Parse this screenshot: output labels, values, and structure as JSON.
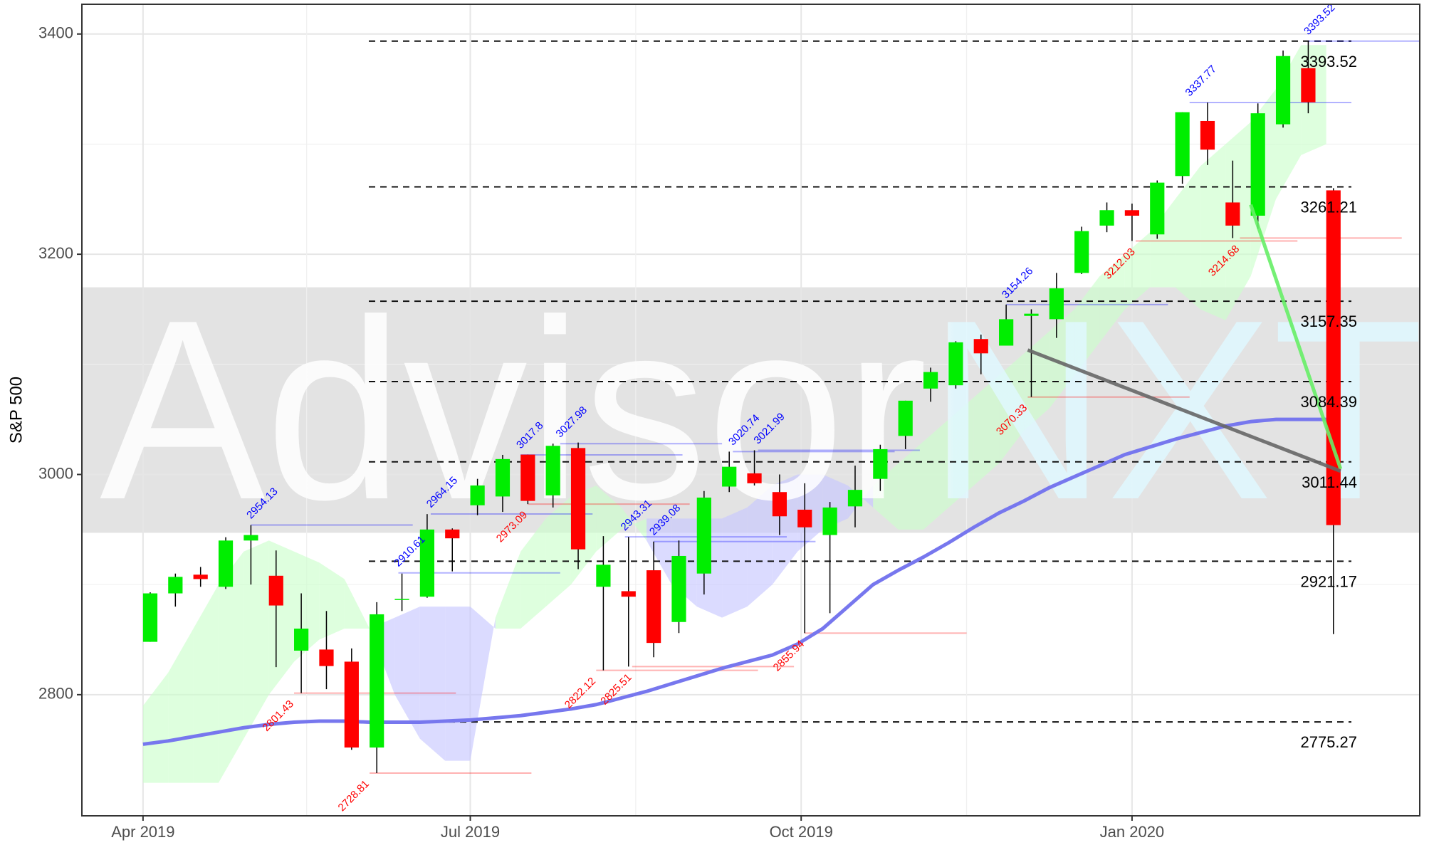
{
  "chart_data": {
    "type": "candlestick",
    "y_label": "S&P 500",
    "watermark": "AdvisorNXT",
    "x": [
      "2019-04-01",
      "2019-04-08",
      "2019-04-15",
      "2019-04-22",
      "2019-04-29",
      "2019-05-06",
      "2019-05-13",
      "2019-05-20",
      "2019-05-27",
      "2019-06-03",
      "2019-06-10",
      "2019-06-17",
      "2019-06-24",
      "2019-07-01",
      "2019-07-08",
      "2019-07-15",
      "2019-07-22",
      "2019-07-29",
      "2019-08-05",
      "2019-08-12",
      "2019-08-19",
      "2019-08-26",
      "2019-09-02",
      "2019-09-09",
      "2019-09-16",
      "2019-09-23",
      "2019-09-30",
      "2019-10-07",
      "2019-10-14",
      "2019-10-21",
      "2019-10-28",
      "2019-11-04",
      "2019-11-11",
      "2019-11-18",
      "2019-11-25",
      "2019-12-02",
      "2019-12-09",
      "2019-12-16",
      "2019-12-23",
      "2019-12-30",
      "2020-01-06",
      "2020-01-13",
      "2020-01-20",
      "2020-01-27",
      "2020-02-03",
      "2020-02-10",
      "2020-02-17",
      "2020-02-24"
    ],
    "open": [
      2848,
      2892,
      2909,
      2898,
      2940,
      2908,
      2840,
      2841,
      2830,
      2752,
      2886,
      2889,
      2950,
      2972,
      2980,
      3018,
      2981,
      3024,
      2898,
      2894,
      2913,
      2866,
      2910,
      2989,
      3001,
      2984,
      2968,
      2945,
      2971,
      2996,
      3035,
      3078,
      3081,
      3123,
      3117,
      3144,
      3141,
      3183,
      3226,
      3240,
      3218,
      3271,
      3321,
      3247,
      3235,
      3318,
      3369,
      3258
    ],
    "high": [
      2893,
      2910,
      2916,
      2943,
      2954,
      2931,
      2892,
      2876,
      2842,
      2884,
      2910,
      2964,
      2951,
      2996,
      3017.8,
      3018,
      3027.98,
      3029,
      2944,
      2943.31,
      2939.08,
      2940,
      2985,
      3020.74,
      3021.99,
      3000,
      2992,
      2975,
      3008,
      3027,
      3067,
      3097,
      3121,
      3127,
      3154.26,
      3150,
      3183,
      3225,
      3247,
      3246,
      3267,
      3329,
      3337.77,
      3285,
      3337,
      3385,
      3393.52,
      3260
    ],
    "low": [
      2848,
      2880,
      2898,
      2896,
      2900,
      2825,
      2801.43,
      2805,
      2750,
      2728.81,
      2876,
      2888,
      2912,
      2963,
      2966,
      2973.09,
      2970,
      2914,
      2822.12,
      2825.51,
      2834,
      2856,
      2891,
      2984,
      2990,
      2945,
      2855.94,
      2874,
      2952,
      2985,
      3023,
      3066,
      3078,
      3091,
      3117,
      3070.33,
      3124,
      3182,
      3220,
      3212.03,
      3214,
      3264,
      3281,
      3214.68,
      3223,
      3315,
      3328,
      2855
    ],
    "close": [
      2892,
      2907,
      2905,
      2940,
      2945,
      2881,
      2860,
      2826,
      2752,
      2873,
      2887,
      2950,
      2942,
      2990,
      3014,
      2976,
      3026,
      2932,
      2918,
      2889,
      2847,
      2926,
      2979,
      3007,
      2992,
      2962,
      2952,
      2970,
      2986,
      3023,
      3067,
      3093,
      3120,
      3110,
      3141,
      3146,
      3169,
      3221,
      3240,
      3235,
      3265,
      3329,
      3295,
      3226,
      3328,
      3380,
      3338,
      2954
    ],
    "up_color": "#00ee00",
    "down_color": "#ff0000",
    "moving_average": {
      "color": "#7777ee",
      "values": [
        2755,
        2758,
        2762,
        2766,
        2770,
        2773,
        2775,
        2776,
        2776,
        2775,
        2775,
        2775,
        2776,
        2777,
        2779,
        2781,
        2784,
        2787,
        2791,
        2797,
        2803,
        2810,
        2817,
        2824,
        2830,
        2836,
        2846,
        2860,
        2880,
        2900,
        2913,
        2925,
        2938,
        2952,
        2965,
        2976,
        2988,
        2998,
        3008,
        3018,
        3025,
        3032,
        3038,
        3044,
        3048,
        3050,
        3050,
        3050
      ]
    },
    "cloud": {
      "up_color": "#ccffcc",
      "down_color": "#c8c8ff",
      "span_a": [
        2790,
        2820,
        2860,
        2900,
        2930,
        2940,
        2930,
        2920,
        2905,
        2860,
        2800,
        2760,
        2740,
        2740,
        2870,
        2930,
        2960,
        2980,
        2990,
        2970,
        2940,
        2900,
        2880,
        2870,
        2880,
        2900,
        2930,
        2950,
        2960,
        2990,
        3010,
        3030,
        3050,
        3070,
        3090,
        3110,
        3130,
        3150,
        3180,
        3200,
        3220,
        3250,
        3280,
        3300,
        3320,
        3350,
        3390,
        3390
      ],
      "span_b": [
        2720,
        2720,
        2720,
        2720,
        2760,
        2800,
        2830,
        2850,
        2860,
        2860,
        2870,
        2880,
        2880,
        2880,
        2860,
        2860,
        2880,
        2900,
        2930,
        2950,
        2960,
        2960,
        2960,
        2960,
        2970,
        2990,
        3000,
        3000,
        2990,
        2970,
        2950,
        2950,
        2970,
        2990,
        3010,
        3040,
        3060,
        3090,
        3120,
        3150,
        3170,
        3170,
        3150,
        3140,
        3180,
        3250,
        3290,
        3300
      ]
    },
    "levels": [
      3393.52,
      3261.21,
      3157.35,
      3084.39,
      3011.44,
      2921.17,
      2775.27
    ],
    "band": [
      2947,
      3170
    ],
    "peaks": {
      "color": "#0000ff",
      "x": [
        "2019-05-01",
        "2019-06-11",
        "2019-06-20",
        "2019-07-15",
        "2019-07-26",
        "2019-08-13",
        "2019-08-21",
        "2019-09-12",
        "2019-09-19",
        "2019-11-27",
        "2020-01-17",
        "2020-02-19"
      ],
      "values": [
        2954.13,
        2910.61,
        2964.15,
        3017.8,
        3027.98,
        2943.31,
        2939.08,
        3020.74,
        3021.99,
        3154.26,
        3337.77,
        3393.52
      ]
    },
    "troughs": {
      "color": "#ff0000",
      "x": [
        "2019-05-13",
        "2019-06-03",
        "2019-07-17",
        "2019-08-05",
        "2019-08-15",
        "2019-10-02",
        "2019-12-03",
        "2020-01-02",
        "2020-01-31"
      ],
      "values": [
        2801.43,
        2728.81,
        2973.09,
        2822.12,
        2825.51,
        2855.94,
        3070.33,
        3212.03,
        3214.68
      ]
    },
    "trendlines": [
      {
        "color": "#66ee66",
        "x": [
          "2020-02-03",
          "2020-02-28"
        ],
        "values": [
          3245,
          3005
        ]
      },
      {
        "color": "#666666",
        "x": [
          "2019-12-03",
          "2020-02-28"
        ],
        "values": [
          3113,
          3003
        ]
      }
    ],
    "xlim": [
      "2019-03-15",
      "2020-03-21"
    ],
    "ylim": [
      2690,
      3427
    ],
    "xticks": [
      {
        "value": "2019-04-01",
        "label": "Apr 2019"
      },
      {
        "value": "2019-07-01",
        "label": "Jul 2019"
      },
      {
        "value": "2019-10-01",
        "label": "Oct 2019"
      },
      {
        "value": "2020-01-01",
        "label": "Jan 2020"
      }
    ],
    "yticks": [
      2800,
      3000,
      3200,
      3400
    ],
    "grid": true
  }
}
